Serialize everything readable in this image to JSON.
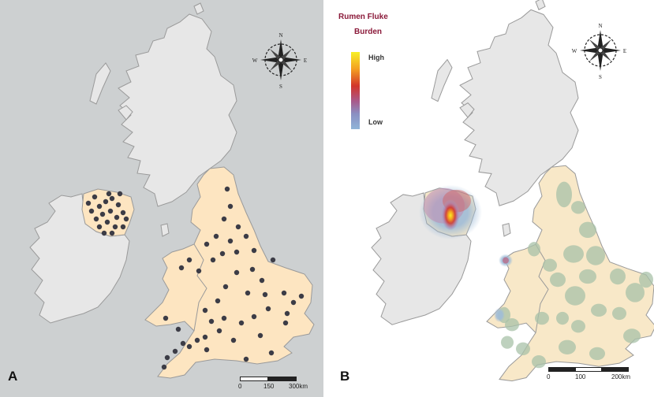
{
  "panels": {
    "a": {
      "label": "A",
      "compass": {
        "n": "N",
        "s": "S",
        "e": "E",
        "w": "W"
      },
      "scale": {
        "ticks": [
          "0",
          "150",
          "300km"
        ]
      }
    },
    "b": {
      "label": "B",
      "compass": {
        "n": "N",
        "s": "S",
        "e": "E",
        "w": "W"
      },
      "legend": {
        "title_line1": "Rumen Fluke",
        "title_line2": "Burden",
        "high": "High",
        "low": "Low"
      },
      "scale": {
        "ticks": [
          "0",
          "100",
          "200km"
        ]
      }
    }
  },
  "colors": {
    "sea_a": "#cdd0d1",
    "sea_b": "#ffffff",
    "land_grey": "#e7e7e7",
    "land_study": "#fde5c1",
    "land_study_b": "#f8e8c8",
    "outline": "#9a9a9a",
    "dot": "#3c3c46",
    "hotspot_green": "#a8c1a8",
    "heat_high": "#f7f026",
    "heat_low": "#8fb4d8"
  }
}
